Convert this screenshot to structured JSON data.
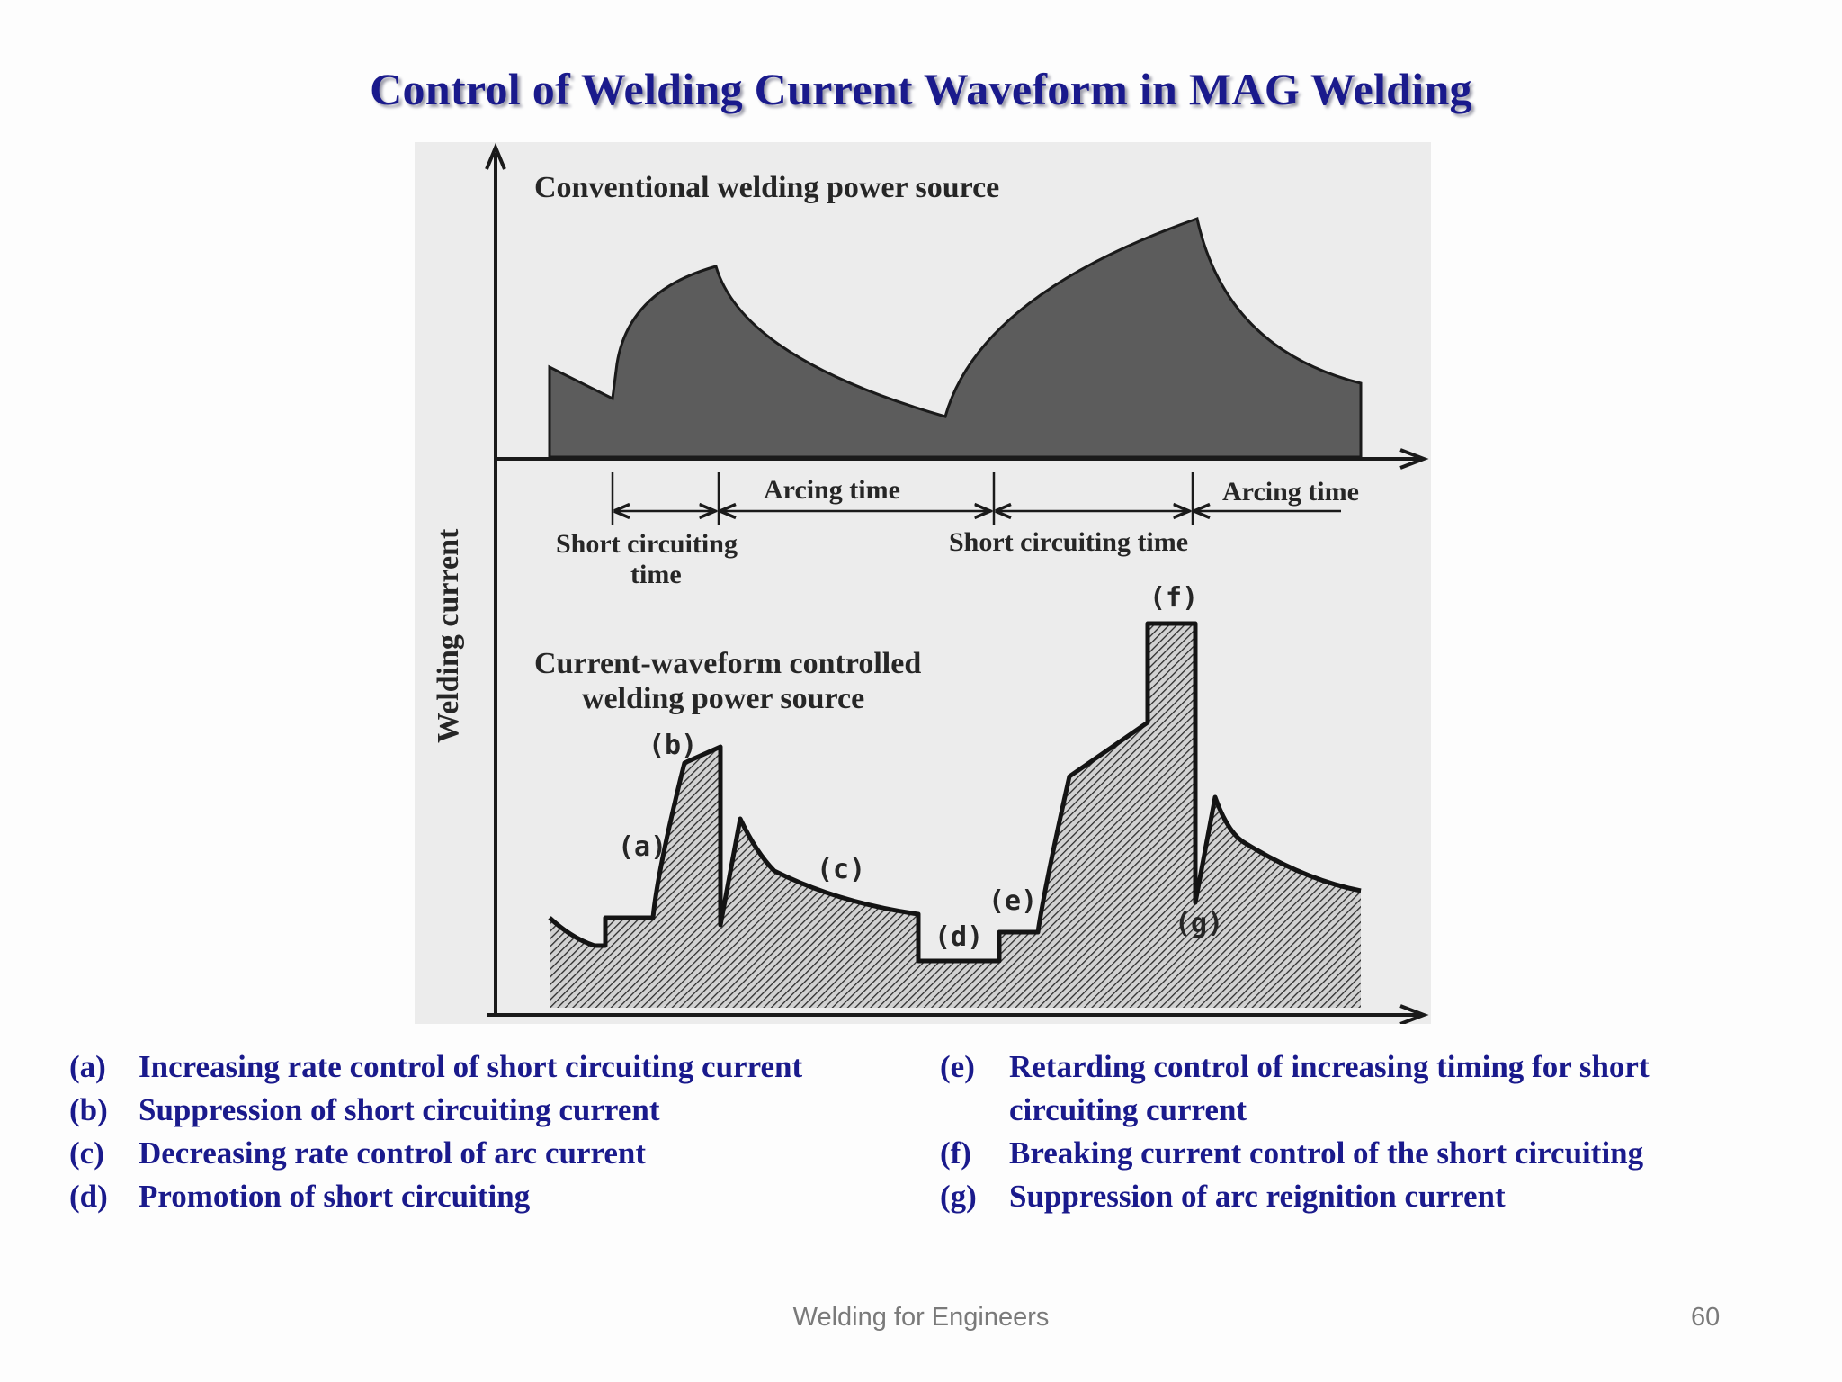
{
  "slide": {
    "title": "Control of Welding Current Waveform in MAG Welding",
    "footer": "Welding for Engineers",
    "page_number": "60"
  },
  "diagram": {
    "y_axis_label": "Welding current",
    "top_panel_title": "Conventional welding power source",
    "bottom_panel_title_line1": "Current-waveform controlled",
    "bottom_panel_title_line2": "welding power source",
    "arcing_time_1": "Arcing time",
    "arcing_time_2": "Arcing time",
    "short_circuit_1_line1": "Short circuiting",
    "short_circuit_1_line2": "time",
    "short_circuit_2": "Short circuiting time",
    "labels": {
      "a": "(a)",
      "b": "(b)",
      "c": "(c)",
      "d": "(d)",
      "e": "(e)",
      "f": "(f)",
      "g": "(g)"
    },
    "colors": {
      "background": "#ececec",
      "fill_dark": "#5c5c5c",
      "line": "#1a1a1a"
    }
  },
  "legend": {
    "left": [
      {
        "key": "(a)",
        "text": "Increasing rate control of short circuiting current"
      },
      {
        "key": "(b)",
        "text": "Suppression of short circuiting current"
      },
      {
        "key": "(c)",
        "text": "Decreasing rate control of arc current"
      },
      {
        "key": "(d)",
        "text": "Promotion of short circuiting"
      }
    ],
    "right": [
      {
        "key": "(e)",
        "text": "Retarding control of increasing timing for short circuiting current"
      },
      {
        "key": "(f)",
        "text": "Breaking current control of the short circuiting"
      },
      {
        "key": "(g)",
        "text": "Suppression of arc reignition current"
      }
    ]
  },
  "colors": {
    "title": "#1a1a8c",
    "legend": "#1a1a8c",
    "footer": "#7a7a7a"
  }
}
